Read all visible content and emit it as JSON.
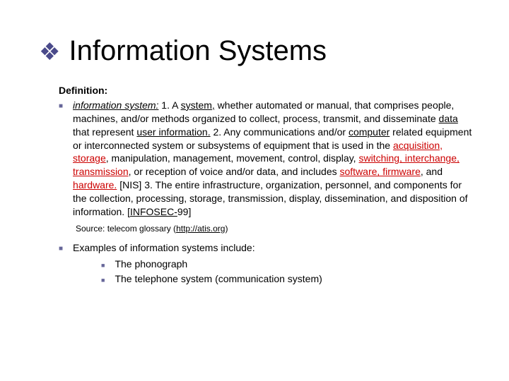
{
  "title": "Information Systems",
  "def_label": "Definition:",
  "def_text": {
    "lead_italic": "information system:",
    "part1_a": " 1. A ",
    "part1_sys": "system,",
    "part1_b": " whether automated or manual, that comprises people, machines, and/or methods organized to collect, process, transmit, and disseminate ",
    "part1_data": "data",
    "part1_c": " that represent ",
    "part1_userinfo": "user information.",
    "part2_a": " 2. Any communications and/or ",
    "part2_computer": "computer",
    "part2_b": " related equipment or interconnected system or subsystems of equipment that is used in the ",
    "part2_acq": "acquisition, storage",
    "part2_c": ", manipulation, management, movement, control, display, ",
    "part2_switch": "switching, interchange, transmission",
    "part2_d": ", or reception of voice and/or data, and includes ",
    "part2_soft": "software, firmware",
    "part2_e": ", and ",
    "part2_hard": "hardware.",
    "part2_f": " [NIS] 3. The entire infrastructure, organization, personnel, and components for the collection, processing, storage, transmission, display, dissemination, and disposition of information. [",
    "part2_infosec": "INFOSEC-",
    "part2_g": "99]"
  },
  "source_prefix": "Source: telecom glossary (",
  "source_link": "http://atis.org",
  "source_suffix": ")",
  "examples_label": "Examples of information systems include:",
  "examples": {
    "item1": "The phonograph",
    "item2": "The telephone system (communication system)"
  }
}
